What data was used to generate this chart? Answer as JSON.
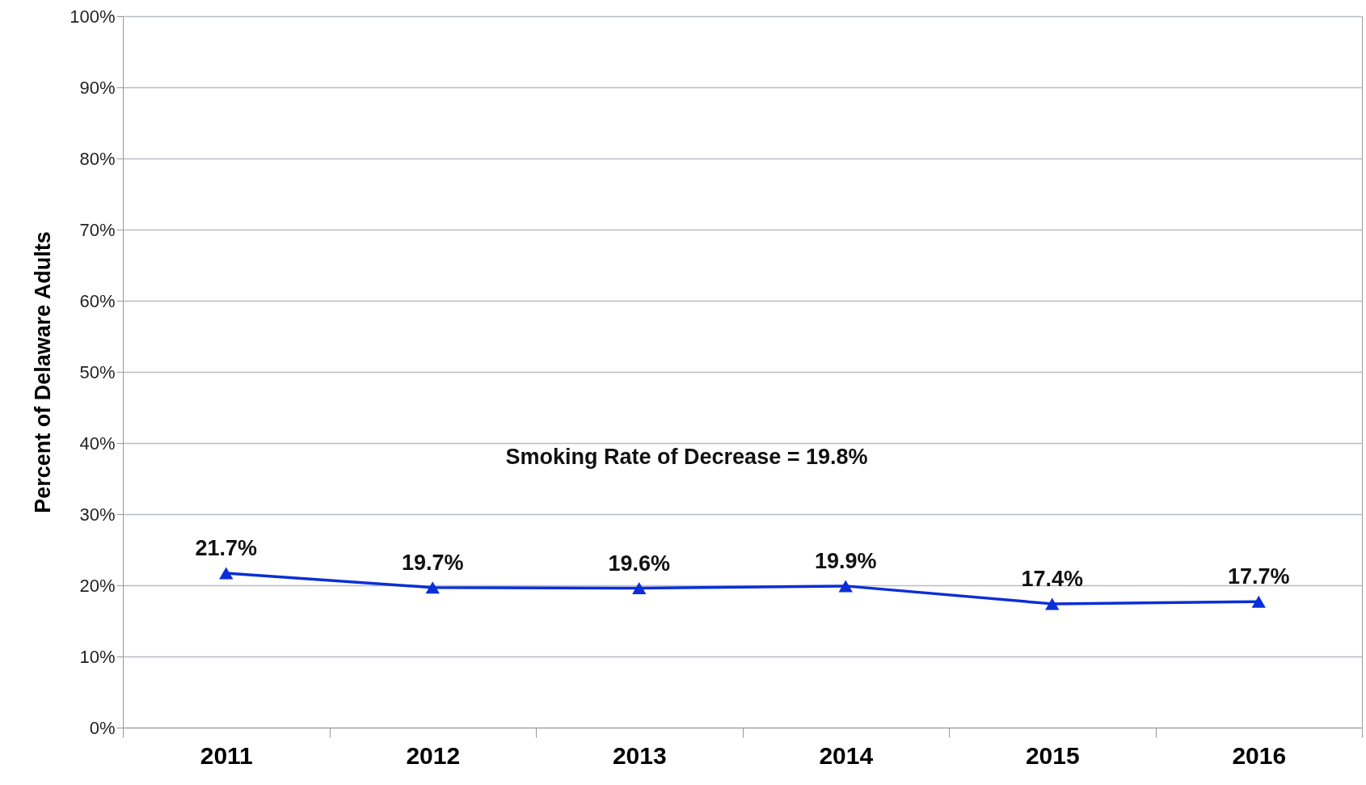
{
  "chart_data": {
    "type": "line",
    "ylabel": "Percent of Delaware Adults",
    "categories": [
      "2011",
      "2012",
      "2013",
      "2014",
      "2015",
      "2016"
    ],
    "series": [
      {
        "color": "#0a2fd6",
        "values": [
          21.7,
          19.7,
          19.6,
          19.9,
          17.4,
          17.7
        ],
        "value_labels": [
          "21.7%",
          "19.7%",
          "19.6%",
          "19.9%",
          "17.4%",
          "17.7%"
        ]
      }
    ],
    "ylim": [
      0,
      100
    ],
    "yticks": [
      {
        "value": 0,
        "label": "0%"
      },
      {
        "value": 10,
        "label": "10%"
      },
      {
        "value": 20,
        "label": "20%"
      },
      {
        "value": 30,
        "label": "30%"
      },
      {
        "value": 40,
        "label": "40%"
      },
      {
        "value": 50,
        "label": "50%"
      },
      {
        "value": 60,
        "label": "60%"
      },
      {
        "value": 70,
        "label": "70%"
      },
      {
        "value": 80,
        "label": "80%"
      },
      {
        "value": 90,
        "label": "90%"
      },
      {
        "value": 100,
        "label": "100%"
      }
    ],
    "annotations": [
      "Smoking Rate of Decrease = 19.8%"
    ],
    "grid": "y",
    "marker": "triangle",
    "line_style": "solid"
  }
}
